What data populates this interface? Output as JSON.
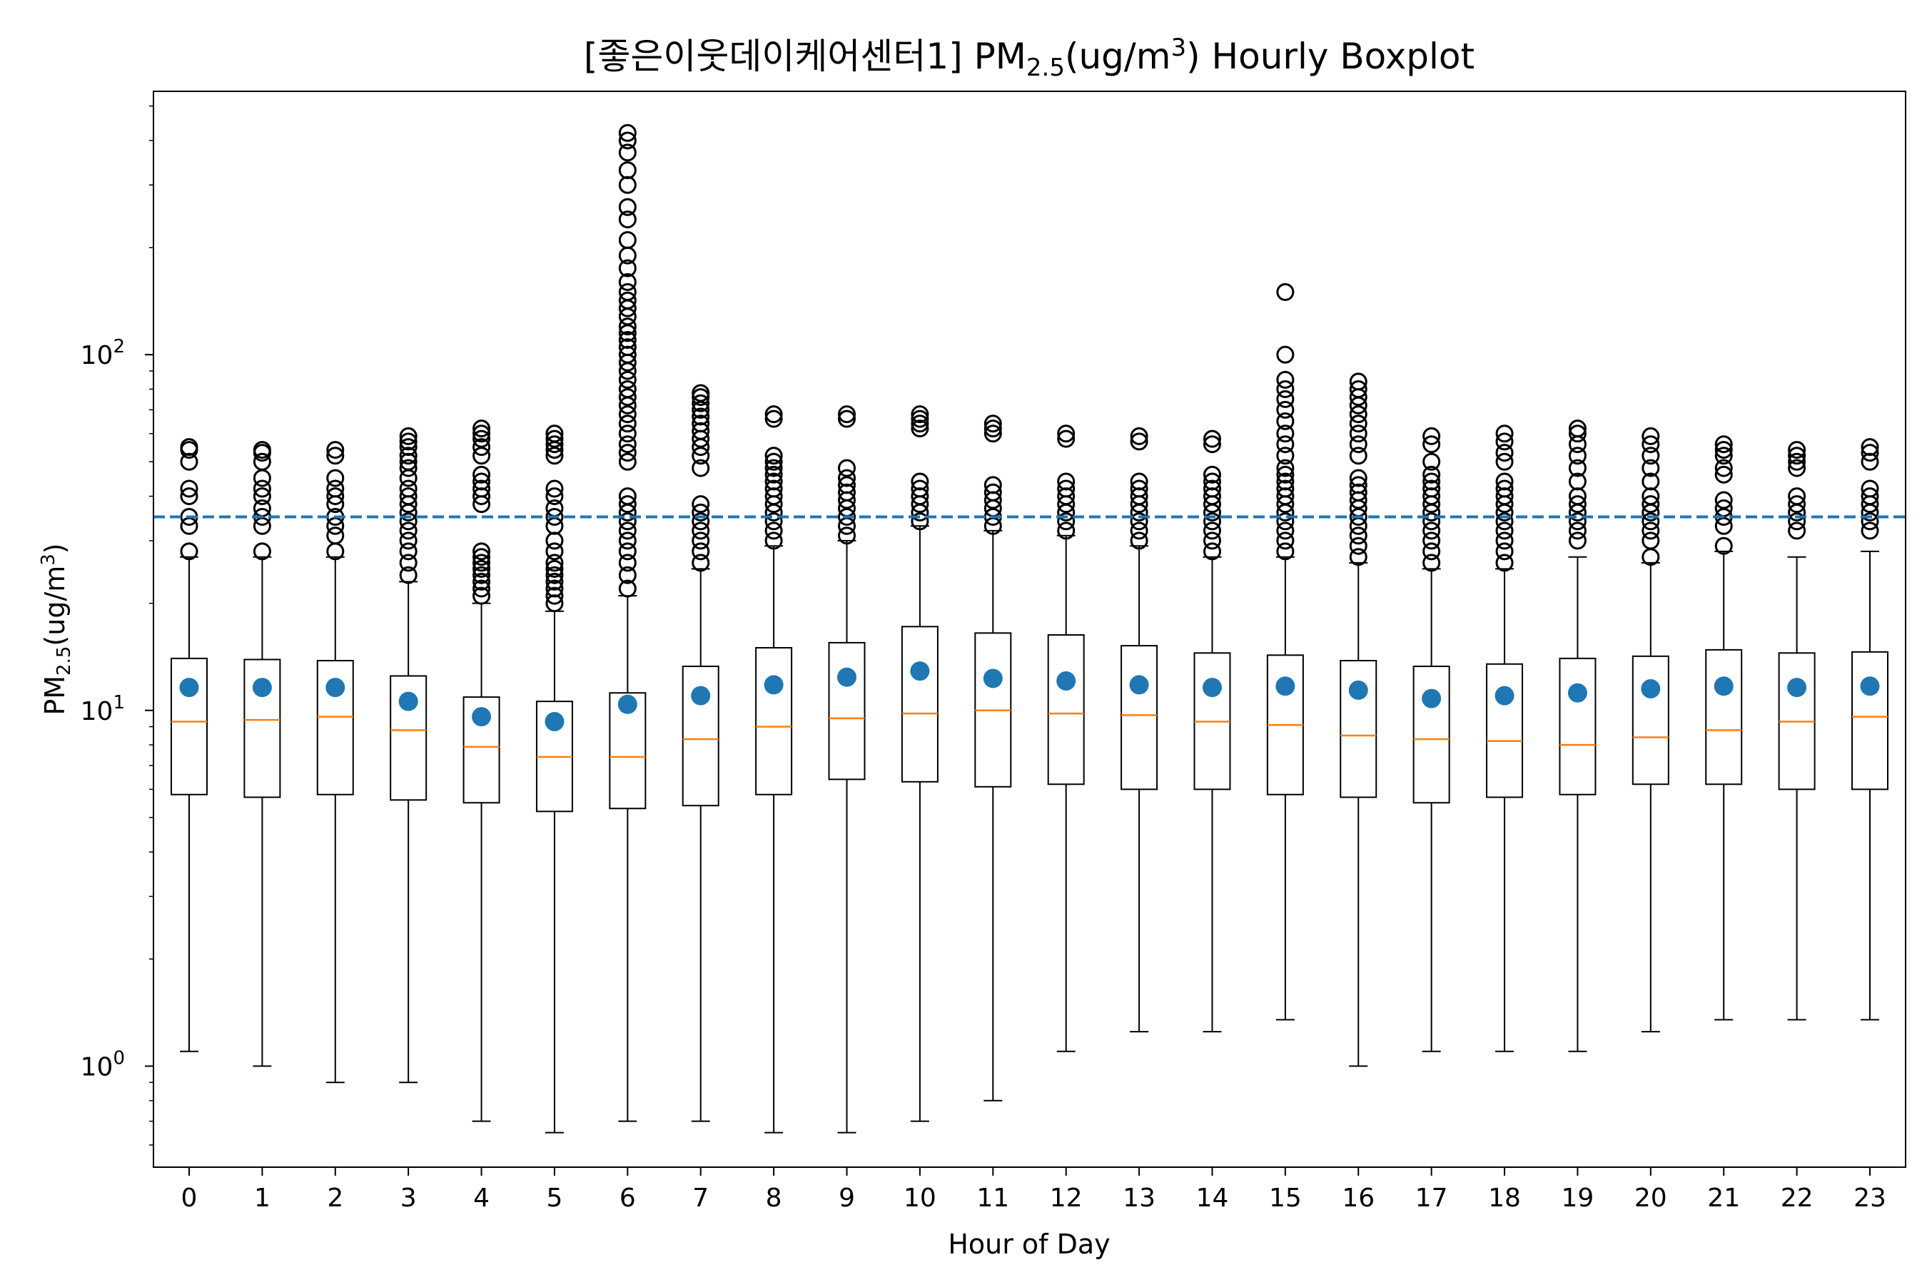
{
  "chart_data": {
    "type": "boxplot",
    "title_main": "[좋은이웃데이케어센터1] PM",
    "title_sub": "2.5",
    "title_mid": "(ug/m",
    "title_sup": "3",
    "title_end": ") Hourly Boxplot",
    "xlabel": "Hour of Day",
    "ylabel_main": "PM",
    "ylabel_sub": "2.5",
    "ylabel_mid": "(ug/m",
    "ylabel_sup": "3",
    "ylabel_end": ")",
    "yscale": "log",
    "ylim": [
      0.52,
      550
    ],
    "y_ticks": [
      {
        "value": 1,
        "base": "10",
        "exp": "0"
      },
      {
        "value": 10,
        "base": "10",
        "exp": "1"
      },
      {
        "value": 100,
        "base": "10",
        "exp": "2"
      }
    ],
    "threshold": 35,
    "colors": {
      "box": "#000000",
      "median": "#ff7f0e",
      "mean": "#1f77b4",
      "threshold": "#1f77b4",
      "flier": "#000000"
    },
    "categories": [
      "0",
      "1",
      "2",
      "3",
      "4",
      "5",
      "6",
      "7",
      "8",
      "9",
      "10",
      "11",
      "12",
      "13",
      "14",
      "15",
      "16",
      "17",
      "18",
      "19",
      "20",
      "21",
      "22",
      "23"
    ],
    "boxes": [
      {
        "whislo": 1.1,
        "q1": 5.8,
        "med": 9.3,
        "q3": 14.0,
        "whishi": 27,
        "mean": 11.6,
        "fliers": [
          28,
          33,
          35,
          40,
          42,
          50,
          54,
          55
        ]
      },
      {
        "whislo": 1.0,
        "q1": 5.7,
        "med": 9.4,
        "q3": 13.9,
        "whishi": 27,
        "mean": 11.6,
        "fliers": [
          28,
          33,
          35,
          37,
          40,
          42,
          45,
          50,
          53,
          54
        ]
      },
      {
        "whislo": 0.9,
        "q1": 5.8,
        "med": 9.6,
        "q3": 13.8,
        "whishi": 27,
        "mean": 11.6,
        "fliers": [
          28,
          31,
          33,
          35,
          38,
          40,
          42,
          45,
          52,
          54
        ]
      },
      {
        "whislo": 0.9,
        "q1": 5.6,
        "med": 8.8,
        "q3": 12.5,
        "whishi": 23,
        "mean": 10.6,
        "fliers": [
          24,
          26,
          28,
          30,
          32,
          34,
          36,
          38,
          40,
          42,
          45,
          48,
          50,
          52,
          55,
          57,
          59
        ]
      },
      {
        "whislo": 0.7,
        "q1": 5.5,
        "med": 7.9,
        "q3": 10.9,
        "whishi": 20,
        "mean": 9.6,
        "fliers": [
          21,
          22,
          23,
          24,
          25,
          26,
          27,
          28,
          38,
          40,
          42,
          44,
          46,
          52,
          55,
          58,
          60,
          62
        ]
      },
      {
        "whislo": 0.65,
        "q1": 5.2,
        "med": 7.4,
        "q3": 10.6,
        "whishi": 19,
        "mean": 9.3,
        "fliers": [
          20,
          21,
          22,
          23,
          24,
          25,
          26,
          28,
          30,
          33,
          35,
          37,
          40,
          42,
          52,
          54,
          56,
          58,
          60
        ]
      },
      {
        "whislo": 0.7,
        "q1": 5.3,
        "med": 7.4,
        "q3": 11.2,
        "whishi": 21,
        "mean": 10.4,
        "fliers": [
          22,
          24,
          26,
          28,
          30,
          32,
          34,
          36,
          38,
          40,
          50,
          53,
          56,
          60,
          64,
          68,
          72,
          76,
          80,
          85,
          90,
          95,
          100,
          105,
          110,
          115,
          120,
          128,
          135,
          142,
          150,
          160,
          175,
          190,
          210,
          240,
          260,
          300,
          330,
          370,
          400,
          420
        ]
      },
      {
        "whislo": 0.7,
        "q1": 5.4,
        "med": 8.3,
        "q3": 13.3,
        "whishi": 25,
        "mean": 11.0,
        "fliers": [
          26,
          28,
          30,
          32,
          34,
          36,
          38,
          48,
          52,
          55,
          58,
          61,
          64,
          67,
          70,
          73,
          76,
          78
        ]
      },
      {
        "whislo": 0.65,
        "q1": 5.8,
        "med": 9.0,
        "q3": 15.0,
        "whishi": 29,
        "mean": 11.8,
        "fliers": [
          30,
          32,
          34,
          36,
          38,
          40,
          42,
          44,
          46,
          48,
          50,
          52,
          66,
          68
        ]
      },
      {
        "whislo": 0.65,
        "q1": 6.4,
        "med": 9.5,
        "q3": 15.5,
        "whishi": 30,
        "mean": 12.4,
        "fliers": [
          31,
          33,
          35,
          37,
          39,
          41,
          43,
          45,
          48,
          66,
          68
        ]
      },
      {
        "whislo": 0.7,
        "q1": 6.3,
        "med": 9.8,
        "q3": 17.2,
        "whishi": 33,
        "mean": 12.9,
        "fliers": [
          34,
          36,
          38,
          40,
          42,
          44,
          62,
          64,
          66,
          68
        ]
      },
      {
        "whislo": 0.8,
        "q1": 6.1,
        "med": 10.0,
        "q3": 16.5,
        "whishi": 32,
        "mean": 12.3,
        "fliers": [
          33,
          35,
          37,
          39,
          41,
          43,
          60,
          62,
          64
        ]
      },
      {
        "whislo": 1.1,
        "q1": 6.2,
        "med": 9.8,
        "q3": 16.3,
        "whishi": 31,
        "mean": 12.1,
        "fliers": [
          32,
          34,
          36,
          38,
          40,
          42,
          44,
          58,
          60
        ]
      },
      {
        "whislo": 1.25,
        "q1": 6.0,
        "med": 9.7,
        "q3": 15.2,
        "whishi": 29,
        "mean": 11.8,
        "fliers": [
          30,
          32,
          34,
          36,
          38,
          40,
          42,
          44,
          57,
          59
        ]
      },
      {
        "whislo": 1.25,
        "q1": 6.0,
        "med": 9.3,
        "q3": 14.5,
        "whishi": 27,
        "mean": 11.6,
        "fliers": [
          28,
          30,
          32,
          34,
          36,
          38,
          40,
          42,
          44,
          46,
          56,
          58
        ]
      },
      {
        "whislo": 1.35,
        "q1": 5.8,
        "med": 9.1,
        "q3": 14.3,
        "whishi": 27,
        "mean": 11.7,
        "fliers": [
          28,
          30,
          32,
          34,
          36,
          38,
          40,
          42,
          44,
          46,
          48,
          52,
          56,
          60,
          65,
          70,
          75,
          80,
          85,
          100,
          150
        ]
      },
      {
        "whislo": 1.0,
        "q1": 5.7,
        "med": 8.5,
        "q3": 13.8,
        "whishi": 26,
        "mean": 11.4,
        "fliers": [
          27,
          29,
          31,
          33,
          35,
          37,
          39,
          41,
          43,
          45,
          52,
          56,
          60,
          64,
          68,
          72,
          76,
          80,
          84
        ]
      },
      {
        "whislo": 1.1,
        "q1": 5.5,
        "med": 8.3,
        "q3": 13.3,
        "whishi": 25,
        "mean": 10.8,
        "fliers": [
          26,
          28,
          30,
          32,
          34,
          36,
          38,
          40,
          42,
          44,
          46,
          50,
          56,
          59
        ]
      },
      {
        "whislo": 1.1,
        "q1": 5.7,
        "med": 8.2,
        "q3": 13.5,
        "whishi": 25,
        "mean": 11.0,
        "fliers": [
          26,
          28,
          30,
          32,
          34,
          36,
          38,
          40,
          42,
          44,
          50,
          53,
          57,
          60
        ]
      },
      {
        "whislo": 1.1,
        "q1": 5.8,
        "med": 8.0,
        "q3": 14.0,
        "whishi": 27,
        "mean": 11.2,
        "fliers": [
          30,
          32,
          34,
          36,
          38,
          40,
          44,
          48,
          52,
          56,
          60,
          62
        ]
      },
      {
        "whislo": 1.25,
        "q1": 6.2,
        "med": 8.4,
        "q3": 14.2,
        "whishi": 26,
        "mean": 11.5,
        "fliers": [
          27,
          30,
          32,
          34,
          36,
          38,
          40,
          44,
          48,
          52,
          56,
          59
        ]
      },
      {
        "whislo": 1.35,
        "q1": 6.2,
        "med": 8.8,
        "q3": 14.8,
        "whishi": 28,
        "mean": 11.7,
        "fliers": [
          29,
          33,
          35,
          37,
          39,
          46,
          48,
          52,
          54,
          56
        ]
      },
      {
        "whislo": 1.35,
        "q1": 6.0,
        "med": 9.3,
        "q3": 14.5,
        "whishi": 27,
        "mean": 11.6,
        "fliers": [
          32,
          34,
          36,
          38,
          40,
          48,
          50,
          52,
          54
        ]
      },
      {
        "whislo": 1.35,
        "q1": 6.0,
        "med": 9.6,
        "q3": 14.6,
        "whishi": 28,
        "mean": 11.7,
        "fliers": [
          32,
          34,
          36,
          38,
          40,
          42,
          50,
          53,
          55
        ]
      }
    ]
  }
}
